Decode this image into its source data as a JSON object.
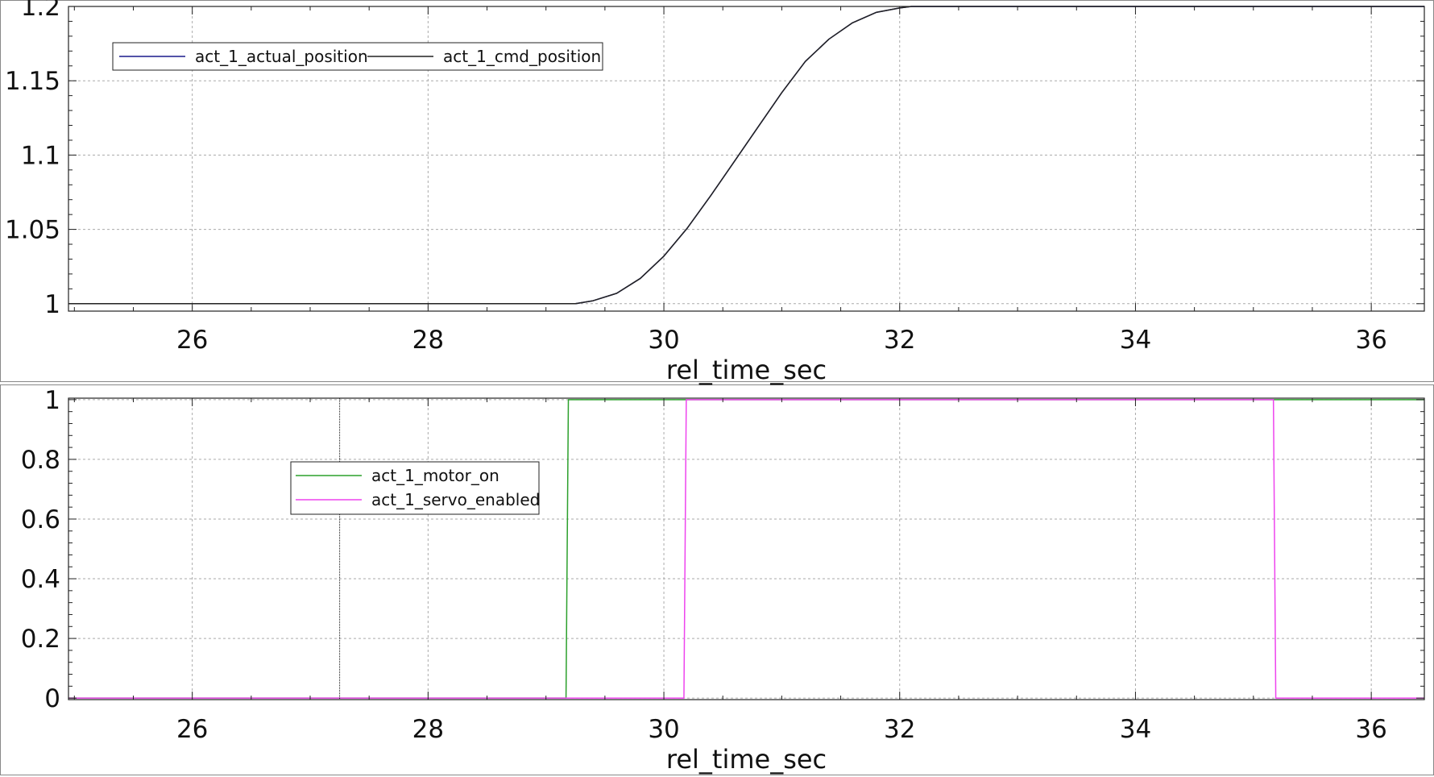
{
  "chart_data": [
    {
      "type": "line",
      "xlabel": "rel_time_sec",
      "ylabel": "",
      "xlim": [
        24.95,
        36.45
      ],
      "ylim": [
        0.995,
        1.2
      ],
      "xticks": [
        26,
        28,
        30,
        32,
        34,
        36
      ],
      "xtick_labels": [
        "26",
        "28",
        "30",
        "32",
        "34",
        "36"
      ],
      "yticks": [
        1,
        1.05,
        1.1,
        1.15,
        1.2
      ],
      "ytick_labels": [
        "1",
        "1.05",
        "1.1",
        "1.15",
        "1.2"
      ],
      "grid": true,
      "legend_position": "top-left",
      "series": [
        {
          "name": "act_1_actual_position",
          "color": "#1a1a8c",
          "x": [
            24.95,
            29.25,
            29.4,
            29.6,
            29.8,
            30.0,
            30.2,
            30.4,
            30.6,
            30.8,
            31.0,
            31.2,
            31.4,
            31.6,
            31.8,
            32.0,
            32.1,
            32.2,
            36.45
          ],
          "y": [
            1.0,
            1.0,
            1.002,
            1.007,
            1.017,
            1.032,
            1.051,
            1.073,
            1.096,
            1.119,
            1.142,
            1.163,
            1.178,
            1.189,
            1.196,
            1.199,
            1.2,
            1.2,
            1.2
          ]
        },
        {
          "name": "act_1_cmd_position",
          "color": "#222222",
          "x": [
            24.95,
            29.25,
            29.4,
            29.6,
            29.8,
            30.0,
            30.2,
            30.4,
            30.6,
            30.8,
            31.0,
            31.2,
            31.4,
            31.6,
            31.8,
            32.0,
            32.1,
            32.2,
            36.45
          ],
          "y": [
            1.0,
            1.0,
            1.002,
            1.007,
            1.017,
            1.032,
            1.051,
            1.073,
            1.096,
            1.119,
            1.142,
            1.163,
            1.178,
            1.189,
            1.196,
            1.199,
            1.2,
            1.2,
            1.2
          ]
        }
      ]
    },
    {
      "type": "line",
      "xlabel": "rel_time_sec",
      "ylabel": "",
      "xlim": [
        24.95,
        36.45
      ],
      "ylim": [
        -0.005,
        1.005
      ],
      "xticks": [
        26,
        28,
        30,
        32,
        34,
        36
      ],
      "xtick_labels": [
        "26",
        "28",
        "30",
        "32",
        "34",
        "36"
      ],
      "yticks": [
        0,
        0.2,
        0.4,
        0.6,
        0.8,
        1
      ],
      "ytick_labels": [
        "0",
        "0.2",
        "0.4",
        "0.6",
        "0.8",
        "1"
      ],
      "grid": true,
      "legend_position": "top-left",
      "cursor_x": 27.25,
      "series": [
        {
          "name": "act_1_motor_on",
          "color": "#2ca02c",
          "x": [
            24.95,
            29.17,
            29.19,
            36.45
          ],
          "y": [
            0,
            0,
            1,
            1
          ]
        },
        {
          "name": "act_1_servo_enabled",
          "color": "#ee44ee",
          "x": [
            24.95,
            30.17,
            30.19,
            35.17,
            35.19,
            36.45
          ],
          "y": [
            0,
            0,
            1,
            1,
            0,
            0
          ]
        }
      ]
    }
  ]
}
